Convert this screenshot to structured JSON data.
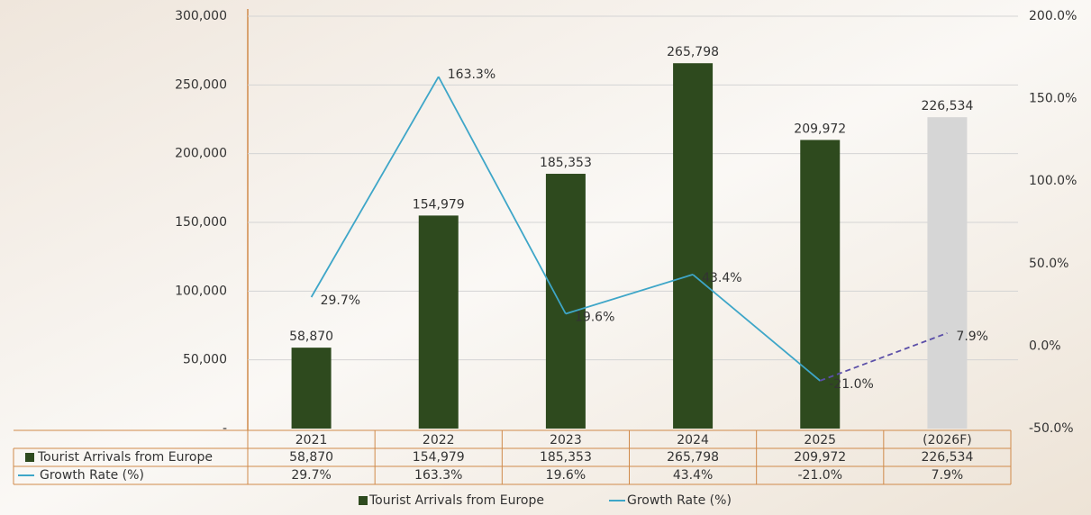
{
  "chart_data": {
    "type": "bar",
    "categories": [
      "2021",
      "2022",
      "2023",
      "2024",
      "2025",
      "(2026F)"
    ],
    "series": [
      {
        "name": "Tourist  Arrivals from Europe",
        "type": "bar",
        "color": "#2e4a1e",
        "colors": [
          "#2e4a1e",
          "#2e4a1e",
          "#2e4a1e",
          "#2e4a1e",
          "#2e4a1e",
          "#d6d6d6"
        ],
        "values": [
          58870,
          154979,
          185353,
          265798,
          209972,
          226534
        ],
        "value_labels": [
          "58,870",
          "154,979",
          "185,353",
          "265,798",
          "209,972",
          "226,534"
        ]
      },
      {
        "name": "Growth Rate (%)",
        "type": "line",
        "axis": "y2",
        "color": "#3ea6c8",
        "forecast_color": "#5b4fa8",
        "values": [
          29.7,
          163.3,
          19.6,
          43.4,
          -21.0,
          7.9
        ],
        "value_labels": [
          "29.7%",
          "163.3%",
          "19.6%",
          "43.4%",
          "-21.0%",
          "7.9%"
        ]
      }
    ],
    "ylim": [
      0,
      300000
    ],
    "yticks": [
      {
        "value": 0,
        "label": "-"
      },
      {
        "value": 50000,
        "label": "50,000"
      },
      {
        "value": 100000,
        "label": "100,000"
      },
      {
        "value": 150000,
        "label": "150,000"
      },
      {
        "value": 200000,
        "label": "200,000"
      },
      {
        "value": 250000,
        "label": "250,000"
      },
      {
        "value": 300000,
        "label": "300,000"
      }
    ],
    "y2lim": [
      -50,
      200
    ],
    "y2ticks": [
      {
        "value": -50,
        "label": "-50.0%"
      },
      {
        "value": 0,
        "label": "0.0%"
      },
      {
        "value": 50,
        "label": "50.0%"
      },
      {
        "value": 100,
        "label": "100.0%"
      },
      {
        "value": 150,
        "label": "150.0%"
      },
      {
        "value": 200,
        "label": "200.0%"
      }
    ],
    "grid": true
  }
}
